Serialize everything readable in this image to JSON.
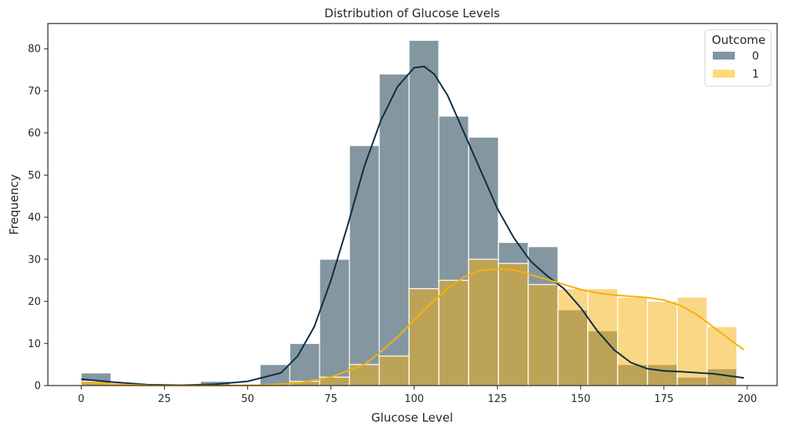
{
  "chart_data": {
    "type": "bar",
    "subtype": "overlaid-histogram-with-kde",
    "title": "Distribution of Glucose Levels",
    "xlabel": "Glucose Level",
    "ylabel": "Frequency",
    "xlim": [
      -10,
      209
    ],
    "ylim": [
      0,
      86
    ],
    "xticks": [
      0,
      25,
      50,
      75,
      100,
      125,
      150,
      175,
      200
    ],
    "yticks": [
      0,
      10,
      20,
      30,
      40,
      50,
      60,
      70,
      80
    ],
    "grid": false,
    "legend": {
      "title": "Outcome",
      "placement": "top-right"
    },
    "bin_edges": [
      0,
      8.95,
      17.9,
      26.85,
      35.8,
      44.75,
      53.7,
      62.65,
      71.6,
      80.55,
      89.5,
      98.45,
      107.4,
      116.35,
      125.3,
      134.25,
      143.2,
      152.15,
      161.1,
      170.05,
      179,
      187.95,
      196.9
    ],
    "series": [
      {
        "name": "0",
        "color": "#0a2f44",
        "fill_color": "#7f96a1",
        "counts": [
          3,
          0,
          0,
          0,
          1,
          0,
          5,
          10,
          30,
          57,
          74,
          82,
          64,
          59,
          34,
          33,
          18,
          13,
          5,
          5,
          2,
          4
        ],
        "kde": [
          [
            0,
            1.5
          ],
          [
            10,
            0.8
          ],
          [
            20,
            0.2
          ],
          [
            30,
            0.1
          ],
          [
            40,
            0.3
          ],
          [
            50,
            1.0
          ],
          [
            60,
            3.0
          ],
          [
            65,
            7.0
          ],
          [
            70,
            14.0
          ],
          [
            75,
            25.0
          ],
          [
            80,
            38.0
          ],
          [
            85,
            52.0
          ],
          [
            90,
            63.0
          ],
          [
            95,
            71.0
          ],
          [
            100,
            75.5
          ],
          [
            103,
            75.8
          ],
          [
            106,
            74.0
          ],
          [
            110,
            69.0
          ],
          [
            115,
            60.0
          ],
          [
            120,
            51.0
          ],
          [
            125,
            42.0
          ],
          [
            130,
            35.0
          ],
          [
            135,
            29.5
          ],
          [
            140,
            26.0
          ],
          [
            145,
            23.0
          ],
          [
            150,
            18.5
          ],
          [
            155,
            13.0
          ],
          [
            160,
            8.5
          ],
          [
            165,
            5.5
          ],
          [
            170,
            4.0
          ],
          [
            175,
            3.5
          ],
          [
            180,
            3.3
          ],
          [
            190,
            2.8
          ],
          [
            199,
            1.8
          ]
        ]
      },
      {
        "name": "1",
        "color": "#f5b00c",
        "fill_color": "#ffd97a",
        "counts": [
          1,
          0,
          0,
          0,
          0,
          0,
          0,
          1,
          2,
          5,
          7,
          23,
          25,
          30,
          29,
          24,
          23,
          23,
          21,
          20,
          21,
          14
        ],
        "kde": [
          [
            0,
            0.8
          ],
          [
            10,
            0.3
          ],
          [
            20,
            0.05
          ],
          [
            40,
            0.0
          ],
          [
            55,
            0.1
          ],
          [
            65,
            0.6
          ],
          [
            75,
            2.0
          ],
          [
            85,
            5.0
          ],
          [
            90,
            8.0
          ],
          [
            95,
            11.5
          ],
          [
            100,
            15.5
          ],
          [
            105,
            19.5
          ],
          [
            110,
            23.0
          ],
          [
            115,
            25.8
          ],
          [
            120,
            27.3
          ],
          [
            125,
            27.7
          ],
          [
            130,
            27.4
          ],
          [
            135,
            26.3
          ],
          [
            140,
            25.2
          ],
          [
            145,
            24.0
          ],
          [
            150,
            22.8
          ],
          [
            155,
            22.0
          ],
          [
            160,
            21.5
          ],
          [
            165,
            21.2
          ],
          [
            170,
            20.9
          ],
          [
            175,
            20.3
          ],
          [
            180,
            19.0
          ],
          [
            185,
            16.8
          ],
          [
            190,
            13.8
          ],
          [
            195,
            10.8
          ],
          [
            199,
            8.5
          ]
        ]
      }
    ]
  }
}
